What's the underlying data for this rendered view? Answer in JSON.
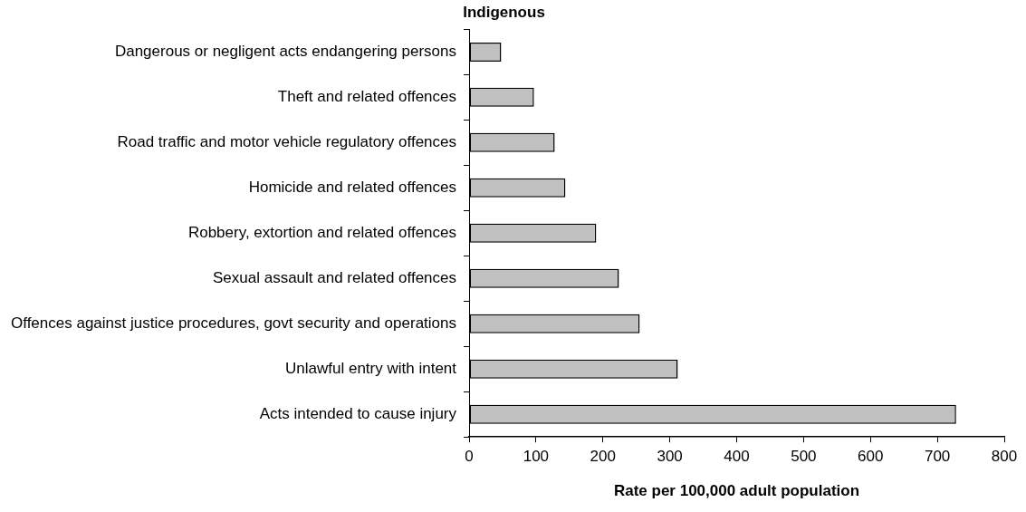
{
  "chart_data": {
    "type": "bar",
    "orientation": "horizontal",
    "title": "Indigenous",
    "xlabel": "Rate per 100,000 adult population",
    "categories": [
      "Dangerous or negligent acts endangering persons",
      "Theft and related offences",
      "Road traffic and motor vehicle regulatory offences",
      "Homicide and related offences",
      "Robbery, extortion and related offences",
      "Sexual assault and related offences",
      "Offences against justice procedures, govt security and operations",
      "Unlawful entry with intent",
      "Acts intended to cause injury"
    ],
    "values": [
      48,
      97,
      128,
      144,
      190,
      224,
      255,
      312,
      728
    ],
    "color": "#c0c0c0",
    "xlim": [
      0,
      800
    ],
    "xticks": [
      0,
      100,
      200,
      300,
      400,
      500,
      600,
      700,
      800
    ],
    "grid": false,
    "legend": false
  }
}
